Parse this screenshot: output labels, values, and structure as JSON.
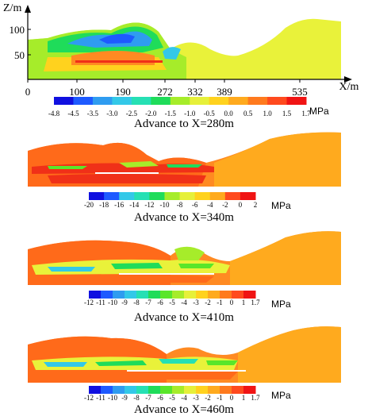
{
  "chart_data": [
    {
      "type": "heatmap",
      "xlabel": "X/m",
      "ylabel": "Z/m",
      "x_ticks": [
        "0",
        "100",
        "190",
        "272",
        "332",
        "389",
        "535"
      ],
      "y_ticks": [
        "50",
        "100"
      ],
      "colorbar_ticks": [
        "-4.8",
        "-4.5",
        "-3.5",
        "-3.0",
        "-2.5",
        "-2.0",
        "-1.5",
        "-1.0",
        "-0.5",
        "0.0",
        "0.5",
        "1.0",
        "1.5",
        "1.7"
      ],
      "colorbar_unit": "MPa",
      "caption": "Advance to X=280m"
    },
    {
      "type": "heatmap",
      "colorbar_ticks": [
        "-20",
        "-18",
        "-16",
        "-14",
        "-12",
        "-10",
        "-8",
        "-6",
        "-4",
        "-2",
        "0",
        "2"
      ],
      "colorbar_unit": "MPa",
      "caption": "Advance to X=340m"
    },
    {
      "type": "heatmap",
      "colorbar_ticks": [
        "-12",
        "-11",
        "-10",
        "-9",
        "-8",
        "-7",
        "-6",
        "-5",
        "-4",
        "-3",
        "-2",
        "-1",
        "0",
        "1",
        "1.7"
      ],
      "colorbar_unit": "MPa",
      "caption": "Advance to X=410m"
    },
    {
      "type": "heatmap",
      "colorbar_ticks": [
        "-12",
        "-11",
        "-10",
        "-9",
        "-8",
        "-7",
        "-6",
        "-5",
        "-4",
        "-3",
        "-2",
        "-1",
        "0",
        "1",
        "1.7"
      ],
      "colorbar_unit": "MPa",
      "caption": "Advance to X=460m"
    }
  ],
  "colors": {
    "scale": [
      "#1010e0",
      "#1e5aff",
      "#2f9cf0",
      "#33c8e8",
      "#26e0b4",
      "#1fdc5a",
      "#5ae62a",
      "#a6ec2a",
      "#e6f03a",
      "#ffd21e",
      "#ffaa1e",
      "#ff7a1e",
      "#ff4a1e",
      "#f01414"
    ],
    "yellow": "#e9f23a",
    "orange": "#ff8a22",
    "deep_orange": "#ff6a1a",
    "red": "#f03018"
  }
}
